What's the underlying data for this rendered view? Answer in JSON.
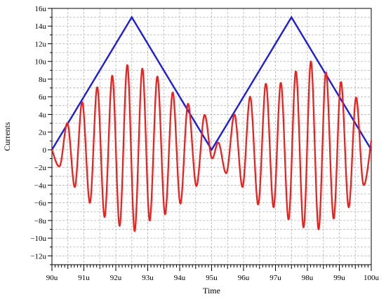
{
  "chart_data": {
    "type": "line",
    "title": "",
    "xlabel": "Time",
    "ylabel": "Currents",
    "xlim": [
      90,
      100
    ],
    "ylim": [
      -13,
      16
    ],
    "x_ticks": [
      {
        "value": 90,
        "label": "90u"
      },
      {
        "value": 91,
        "label": "91u"
      },
      {
        "value": 92,
        "label": "92u"
      },
      {
        "value": 93,
        "label": "93u"
      },
      {
        "value": 94,
        "label": "94u"
      },
      {
        "value": 95,
        "label": "95u"
      },
      {
        "value": 96,
        "label": "96u"
      },
      {
        "value": 97,
        "label": "97u"
      },
      {
        "value": 98,
        "label": "98u"
      },
      {
        "value": 99,
        "label": "99u"
      },
      {
        "value": 100,
        "label": "100u"
      }
    ],
    "y_ticks": [
      {
        "value": 16,
        "label": "16u"
      },
      {
        "value": 14,
        "label": "14u"
      },
      {
        "value": 12,
        "label": "12u"
      },
      {
        "value": 10,
        "label": "10u"
      },
      {
        "value": 8,
        "label": "8u"
      },
      {
        "value": 6,
        "label": "6u"
      },
      {
        "value": 4,
        "label": "4u"
      },
      {
        "value": 2,
        "label": "2u"
      },
      {
        "value": 0,
        "label": "0"
      },
      {
        "value": -2,
        "label": "−2u"
      },
      {
        "value": -4,
        "label": "−4u"
      },
      {
        "value": -6,
        "label": "−6u"
      },
      {
        "value": -8,
        "label": "−8u"
      },
      {
        "value": -10,
        "label": "−10u"
      },
      {
        "value": -12,
        "label": "−12u"
      }
    ],
    "grid": true,
    "series": [
      {
        "color": "#1f1fd6",
        "style": "solid",
        "x": [
          90.0,
          92.5,
          95.0,
          97.5,
          100.0
        ],
        "y": [
          0,
          15,
          0,
          15,
          0
        ]
      },
      {
        "color": "#e8201e",
        "style": "dotted",
        "x": [
          90.0,
          90.25,
          90.49,
          90.72,
          90.95,
          91.19,
          91.42,
          91.65,
          91.89,
          92.12,
          92.36,
          92.59,
          92.83,
          93.06,
          93.3,
          93.54,
          93.78,
          94.02,
          94.26,
          94.52,
          94.77,
          95.0,
          95.22,
          95.47,
          95.72,
          95.97,
          96.21,
          96.46,
          96.7,
          96.94,
          97.17,
          97.41,
          97.64,
          97.88,
          98.11,
          98.35,
          98.58,
          98.82,
          99.05,
          99.29,
          99.52,
          99.75,
          100.0
        ],
        "y": [
          0,
          -1.8,
          3.0,
          -4.2,
          5.4,
          -6.0,
          7.1,
          -7.6,
          8.4,
          -8.6,
          9.6,
          -9.2,
          9.2,
          -8.0,
          8.3,
          -7.3,
          6.5,
          -6.1,
          5.2,
          -4.1,
          3.9,
          -0.9,
          0.8,
          -2.6,
          4.0,
          -4.2,
          6.0,
          -6.2,
          7.5,
          -6.5,
          7.6,
          -7.9,
          8.9,
          -8.8,
          10.0,
          -9.0,
          8.8,
          -7.8,
          7.7,
          -6.5,
          5.9,
          -3.9,
          1.0
        ]
      }
    ]
  }
}
